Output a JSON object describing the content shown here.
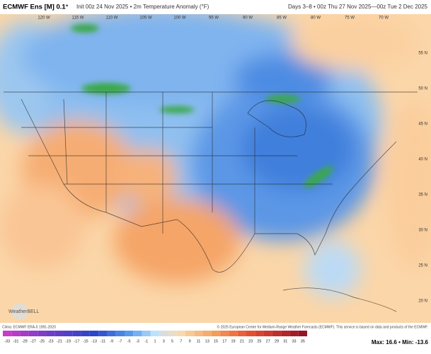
{
  "header": {
    "title": "ECMWF Ens [M] 0.1°",
    "subtitle": "Init 00z 24 Nov 2025 • 2m Temperature Anomaly (°F)",
    "valid": "Days 3–8 • 00z Thu 27 Nov 2025—00z Tue 2 Dec 2025"
  },
  "map": {
    "lon_labels": [
      "120 W",
      "115 W",
      "110 W",
      "105 W",
      "100 W",
      "95 W",
      "90 W",
      "85 W",
      "80 W",
      "75 W",
      "70 W"
    ],
    "lat_labels": [
      "55 N",
      "50 N",
      "45 N",
      "40 N",
      "35 N",
      "30 N",
      "25 N",
      "20 N"
    ],
    "logo": "WeatherBELL"
  },
  "footer": {
    "clima": "Clima: ECMWF ERA-5 1991-2020",
    "copyright": "© 2025 European Centre for Medium-Range Weather Forecasts (ECMWF). This service is based on data and products of the ECMWF.",
    "stats": "Max: 16.6 • Min: -13.6",
    "colorbar": [
      -33,
      -31,
      -29,
      -27,
      -25,
      -23,
      -21,
      -19,
      -17,
      -15,
      -13,
      -11,
      -9,
      -7,
      -5,
      -3,
      -1,
      1,
      3,
      5,
      7,
      9,
      11,
      13,
      15,
      17,
      19,
      21,
      23,
      25,
      27,
      29,
      31,
      33,
      35
    ]
  }
}
